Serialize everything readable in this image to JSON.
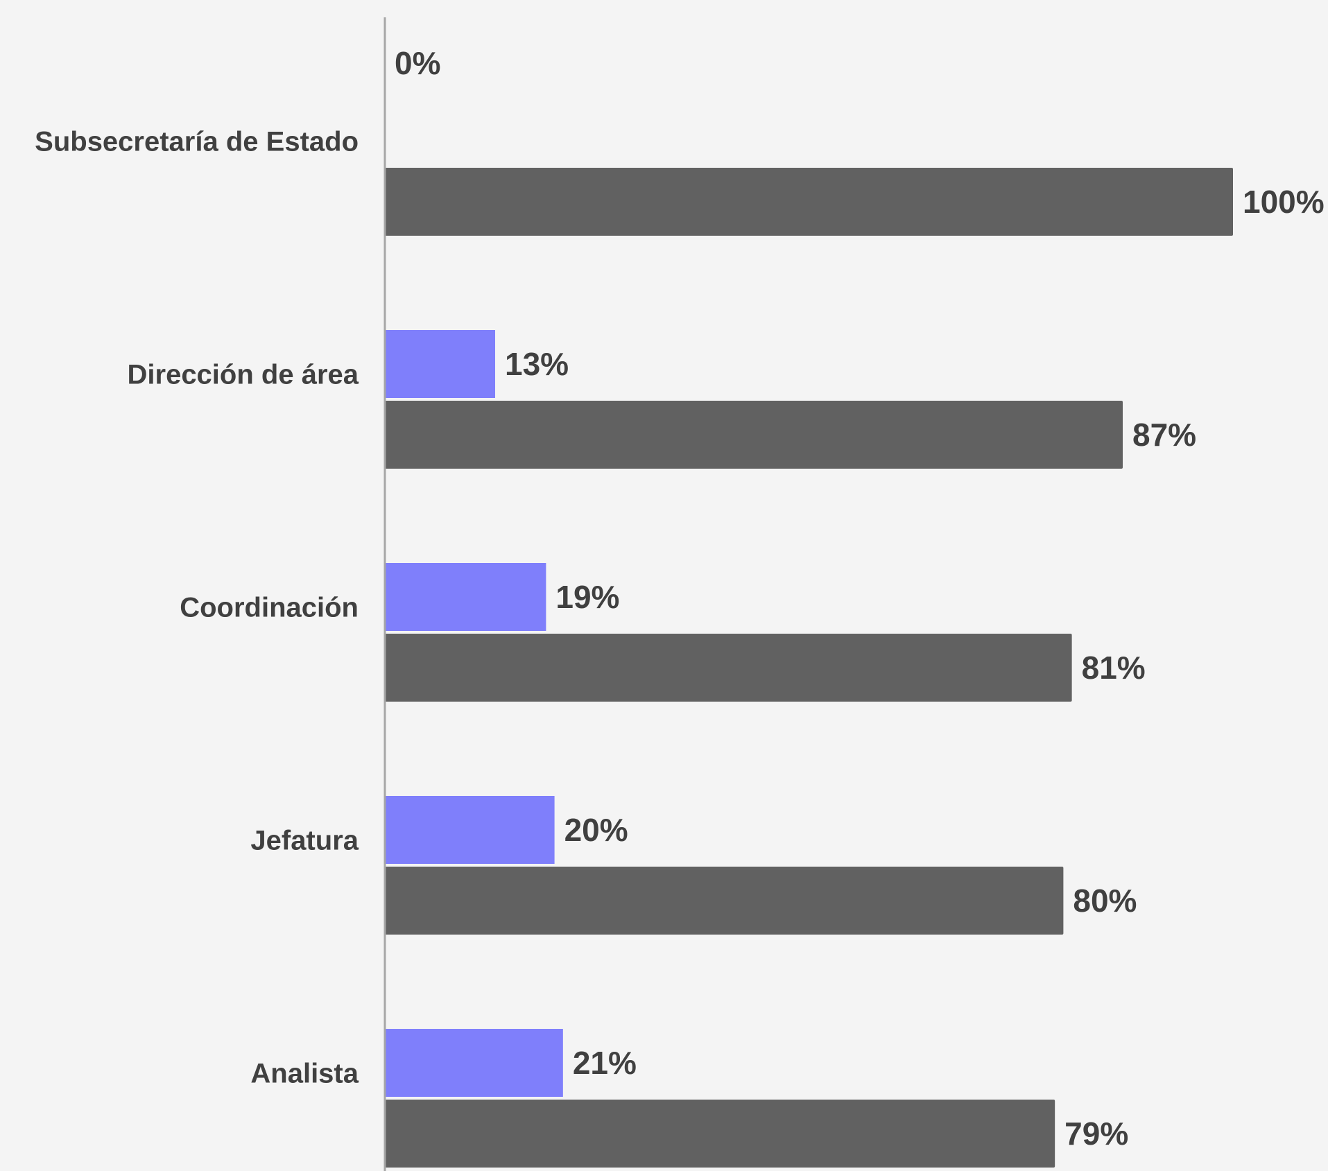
{
  "chart_data": {
    "type": "bar",
    "orientation": "horizontal",
    "categories": [
      "Subsecretaría de Estado",
      "Dirección de área",
      "Coordinación",
      "Jefatura",
      "Analista"
    ],
    "series": [
      {
        "values": [
          0,
          13,
          19,
          20,
          21
        ],
        "labels": [
          "0%",
          "13%",
          "19%",
          "20%",
          "21%"
        ],
        "color": "#7f7ffb"
      },
      {
        "values": [
          100,
          87,
          81,
          80,
          79
        ],
        "labels": [
          "100%",
          "87%",
          "81%",
          "80%",
          "79%"
        ],
        "color": "#616161"
      }
    ],
    "value_format": "percent",
    "xlim": [
      0,
      100
    ],
    "legend": "none",
    "grid": false,
    "colors": {
      "background": "#f4f4f4",
      "axis": "#a6a6a6",
      "text": "#404040"
    }
  }
}
